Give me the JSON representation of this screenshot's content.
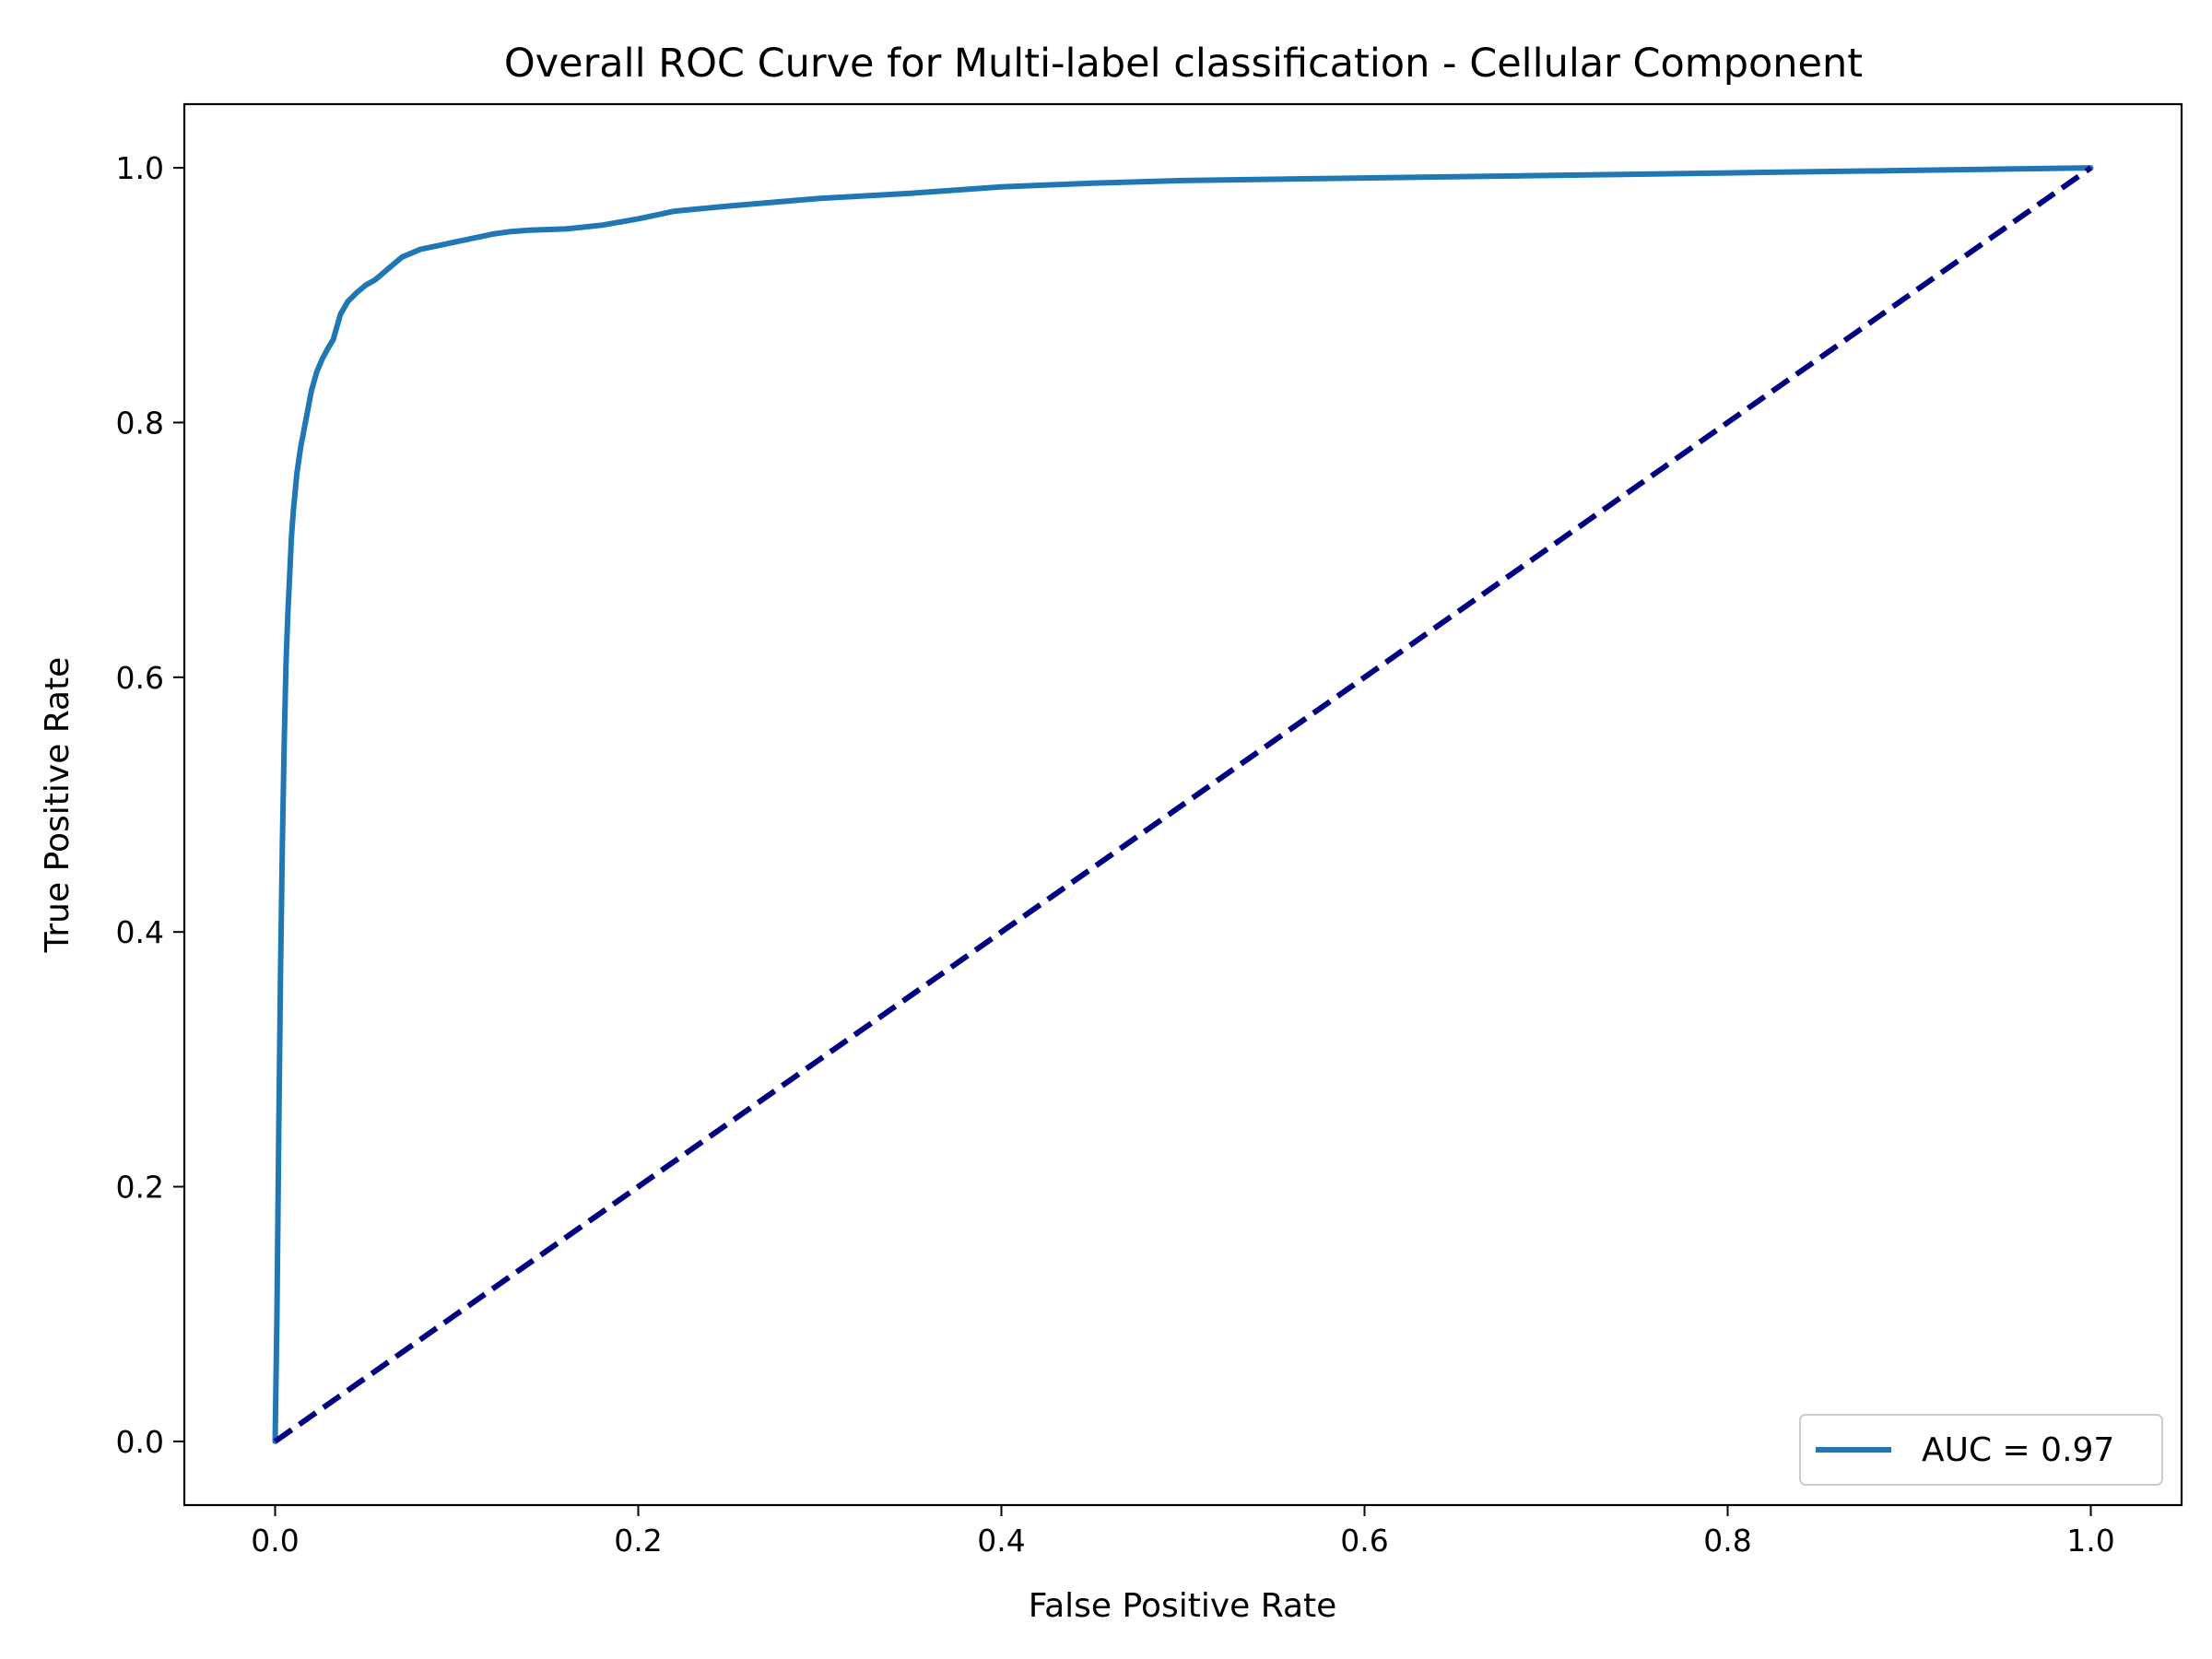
{
  "chart_data": {
    "type": "line",
    "title": "Overall ROC Curve for Multi-label classification - Cellular Component",
    "xlabel": "False Positive Rate",
    "ylabel": "True Positive Rate",
    "xlim": [
      -0.05,
      1.05
    ],
    "ylim": [
      -0.05,
      1.05
    ],
    "xticks": [
      0.0,
      0.2,
      0.4,
      0.6,
      0.8,
      1.0
    ],
    "xtick_labels": [
      "0.0",
      "0.2",
      "0.4",
      "0.6",
      "0.8",
      "1.0"
    ],
    "yticks": [
      0.0,
      0.2,
      0.4,
      0.6,
      0.8,
      1.0
    ],
    "ytick_labels": [
      "0.0",
      "0.2",
      "0.4",
      "0.6",
      "0.8",
      "1.0"
    ],
    "grid": false,
    "legend_position": "lower-right",
    "series": [
      {
        "name": "AUC = 0.97",
        "color": "#1f77b4",
        "style": "solid",
        "x": [
          0.0,
          0.001,
          0.002,
          0.003,
          0.004,
          0.005,
          0.006,
          0.007,
          0.008,
          0.009,
          0.01,
          0.012,
          0.014,
          0.016,
          0.018,
          0.02,
          0.023,
          0.026,
          0.029,
          0.032,
          0.036,
          0.04,
          0.045,
          0.05,
          0.055,
          0.06,
          0.065,
          0.07,
          0.075,
          0.08,
          0.09,
          0.1,
          0.11,
          0.12,
          0.13,
          0.14,
          0.16,
          0.18,
          0.2,
          0.22,
          0.25,
          0.3,
          0.35,
          0.4,
          0.45,
          0.5,
          0.6,
          0.7,
          0.8,
          0.9,
          1.0
        ],
        "y": [
          0.0,
          0.1,
          0.24,
          0.37,
          0.47,
          0.55,
          0.61,
          0.65,
          0.68,
          0.71,
          0.73,
          0.76,
          0.78,
          0.795,
          0.81,
          0.825,
          0.84,
          0.85,
          0.858,
          0.865,
          0.885,
          0.895,
          0.902,
          0.908,
          0.912,
          0.918,
          0.924,
          0.93,
          0.933,
          0.936,
          0.939,
          0.942,
          0.945,
          0.948,
          0.95,
          0.951,
          0.952,
          0.955,
          0.96,
          0.966,
          0.97,
          0.976,
          0.98,
          0.985,
          0.988,
          0.99,
          0.992,
          0.994,
          0.996,
          0.998,
          1.0
        ]
      },
      {
        "name": "",
        "color": "#000080",
        "style": "dashed",
        "x": [
          0.0,
          1.0
        ],
        "y": [
          0.0,
          1.0
        ]
      }
    ],
    "legend": {
      "entries": [
        "AUC = 0.97"
      ]
    }
  }
}
